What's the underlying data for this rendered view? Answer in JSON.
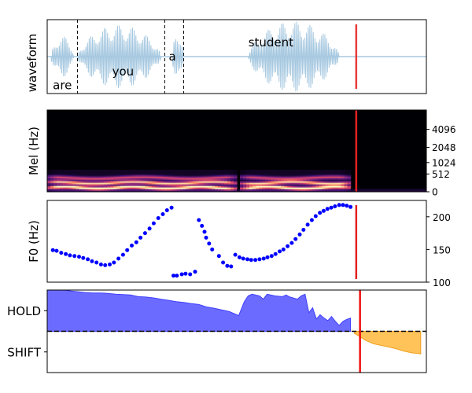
{
  "chart_data": [
    {
      "type": "line",
      "panel": "waveform",
      "ylabel": "waveform",
      "grid": false,
      "colors": {
        "waveform": "#a6c8e0",
        "boundary": "#000000",
        "cursor": "#e83a3a"
      },
      "x_domain": [
        0,
        100
      ],
      "word_boundaries": [
        8,
        31,
        36
      ],
      "words": [
        {
          "text": "are",
          "x": 4,
          "y": -0.78
        },
        {
          "text": "you",
          "x": 20,
          "y": -0.4
        },
        {
          "text": "a",
          "x": 33,
          "y": 0.0
        },
        {
          "text": "student",
          "x": 59,
          "y": 0.38
        }
      ],
      "voiced_segments": [
        {
          "start": 1,
          "end": 7,
          "amp": 0.55
        },
        {
          "start": 8,
          "end": 30,
          "amp": 0.85
        },
        {
          "start": 33,
          "end": 36,
          "amp": 0.7
        },
        {
          "start": 53,
          "end": 77,
          "amp": 0.95
        }
      ],
      "cursor_x": 81.5
    },
    {
      "type": "heatmap",
      "panel": "mel-spectrogram",
      "ylabel": "Mel (Hz)",
      "yticks": [
        "0",
        "512",
        "1024",
        "2048",
        "4096"
      ],
      "colormap": [
        "#000004",
        "#3b0f70",
        "#8c2981",
        "#de4968",
        "#fe9f6d",
        "#fcfdbf"
      ],
      "x_domain": [
        0,
        100
      ],
      "voiced_segments": [
        [
          0,
          50
        ],
        [
          51,
          80
        ]
      ],
      "cursor_x": 81.5
    },
    {
      "type": "scatter",
      "panel": "f0",
      "ylabel": "F0 (Hz)",
      "ylim": [
        100,
        225
      ],
      "yticks": [
        100,
        150,
        200
      ],
      "point_color": "#0000ff",
      "x_domain": [
        0,
        100
      ],
      "x": [
        1.5,
        2.5,
        3.7,
        4.9,
        6.0,
        7.2,
        8.4,
        9.5,
        10.7,
        11.8,
        13.0,
        14.2,
        15.3,
        16.5,
        17.6,
        18.8,
        20.0,
        21.1,
        22.3,
        23.5,
        24.6,
        25.8,
        27.0,
        28.1,
        29.3,
        30.5,
        31.6,
        32.8,
        33.3,
        34.2,
        35.5,
        36.5,
        37.7,
        39.0,
        40.0,
        40.8,
        41.5,
        41.9,
        42.7,
        43.5,
        45.3,
        46.4,
        47.5,
        48.5,
        49.6,
        50.7,
        51.7,
        52.8,
        53.8,
        54.9,
        56.0,
        57.1,
        58.1,
        59.2,
        60.2,
        61.3,
        62.3,
        63.4,
        64.5,
        65.5,
        66.6,
        67.6,
        68.7,
        69.8,
        70.8,
        71.9,
        72.9,
        73.9,
        74.9,
        75.9,
        77.0,
        78.0,
        79.0,
        80.0
      ],
      "y": [
        149,
        148,
        145,
        143,
        141,
        140,
        139,
        137,
        135,
        132,
        130,
        127,
        126,
        127,
        130,
        136,
        142,
        149,
        156,
        161,
        168,
        175,
        182,
        190,
        198,
        204,
        210,
        214,
        110,
        110,
        112,
        113,
        112,
        116,
        195,
        186,
        177,
        168,
        159,
        150,
        140,
        130,
        125,
        124,
        142,
        138,
        136,
        135,
        134,
        134,
        135,
        136,
        138,
        140,
        143,
        147,
        150,
        155,
        160,
        166,
        173,
        180,
        188,
        195,
        201,
        206,
        209,
        212,
        214,
        216,
        218,
        218,
        217,
        215
      ]
    },
    {
      "type": "area",
      "panel": "turn-taking",
      "ytick_labels": [
        "HOLD",
        "SHIFT"
      ],
      "ylim": [
        -1,
        1
      ],
      "colors": {
        "hold": "#6b6bff",
        "hold_edge": "#4040ff",
        "shift": "#ffc35a",
        "shift_edge": "#f0a020",
        "threshold": "#000000",
        "cursor": "#ee1111"
      },
      "x_domain": [
        0,
        100
      ],
      "threshold": 0,
      "hold": {
        "x": [
          0,
          2,
          4,
          6,
          8,
          10,
          12,
          14,
          16,
          18,
          20,
          22,
          24,
          26,
          28,
          30,
          32,
          34,
          36,
          38,
          40,
          42,
          44,
          46,
          48,
          50,
          50.5,
          52,
          53,
          54,
          56,
          57,
          58,
          60,
          62,
          63,
          64,
          66,
          67,
          68,
          69,
          70,
          71,
          72,
          73,
          74,
          75,
          76,
          77,
          78,
          79,
          80
        ],
        "y": [
          1.02,
          1.02,
          1.01,
          0.98,
          0.96,
          0.94,
          0.93,
          0.93,
          0.92,
          0.9,
          0.89,
          0.88,
          0.84,
          0.83,
          0.81,
          0.78,
          0.75,
          0.72,
          0.7,
          0.67,
          0.65,
          0.59,
          0.56,
          0.52,
          0.48,
          0.4,
          0.38,
          0.72,
          0.86,
          0.9,
          0.86,
          0.78,
          0.9,
          0.86,
          0.84,
          0.88,
          0.83,
          0.78,
          0.86,
          0.9,
          0.45,
          0.57,
          0.3,
          0.4,
          0.32,
          0.26,
          0.36,
          0.24,
          0.14,
          0.24,
          0.29,
          0.32
        ]
      },
      "shift": {
        "x": [
          81,
          82,
          84,
          86,
          88,
          90,
          92,
          94,
          96,
          98,
          98.5
        ],
        "y": [
          -0.05,
          -0.1,
          -0.22,
          -0.3,
          -0.34,
          -0.38,
          -0.42,
          -0.48,
          -0.52,
          -0.54,
          -0.55
        ]
      },
      "cursor_x": 82.5
    }
  ]
}
